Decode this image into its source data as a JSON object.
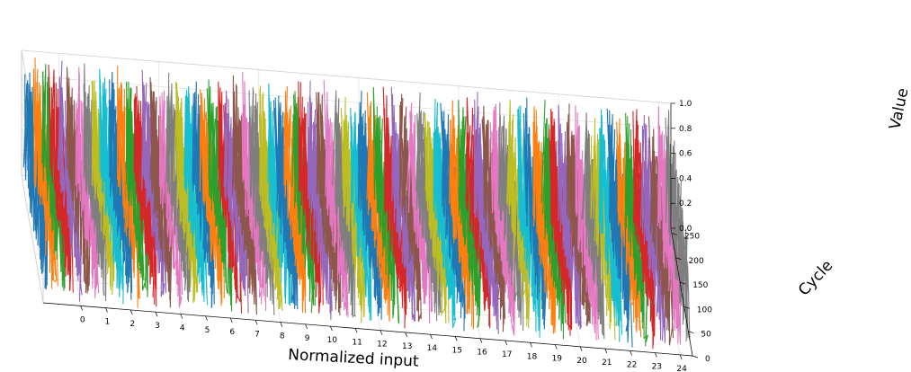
{
  "chart_data": {
    "type": "line",
    "projection": "3d",
    "title": "",
    "xlabel": "Normalized input",
    "ylabel": "Cycle",
    "zlabel": "Value",
    "xlim": [
      -1.5,
      24.5
    ],
    "ylim": [
      0,
      260
    ],
    "zlim": [
      0,
      1
    ],
    "x_ticks": [
      "0",
      "1",
      "2",
      "3",
      "4",
      "5",
      "6",
      "7",
      "8",
      "9",
      "10",
      "11",
      "12",
      "13",
      "14",
      "15",
      "16",
      "17",
      "18",
      "19",
      "20",
      "21",
      "22",
      "23",
      "24"
    ],
    "y_ticks": [
      "0",
      "50",
      "100",
      "150",
      "200",
      "250"
    ],
    "z_ticks": [
      "0.0",
      "0.2",
      "0.4",
      "0.6",
      "0.8",
      "1.0"
    ],
    "grid": true,
    "legend": "none",
    "colors": [
      "#1f77b4",
      "#ff7f0e",
      "#2ca02c",
      "#d62728",
      "#9467bd",
      "#8c564b",
      "#e377c2",
      "#7f7f7f",
      "#bcbd22",
      "#17becf"
    ],
    "series_pattern": "Each line oscillates between 0 and 1 across cycles 0-260, drawn at discrete x offsets around each integer position of the Normalized input axis; one tab10 color per line."
  }
}
